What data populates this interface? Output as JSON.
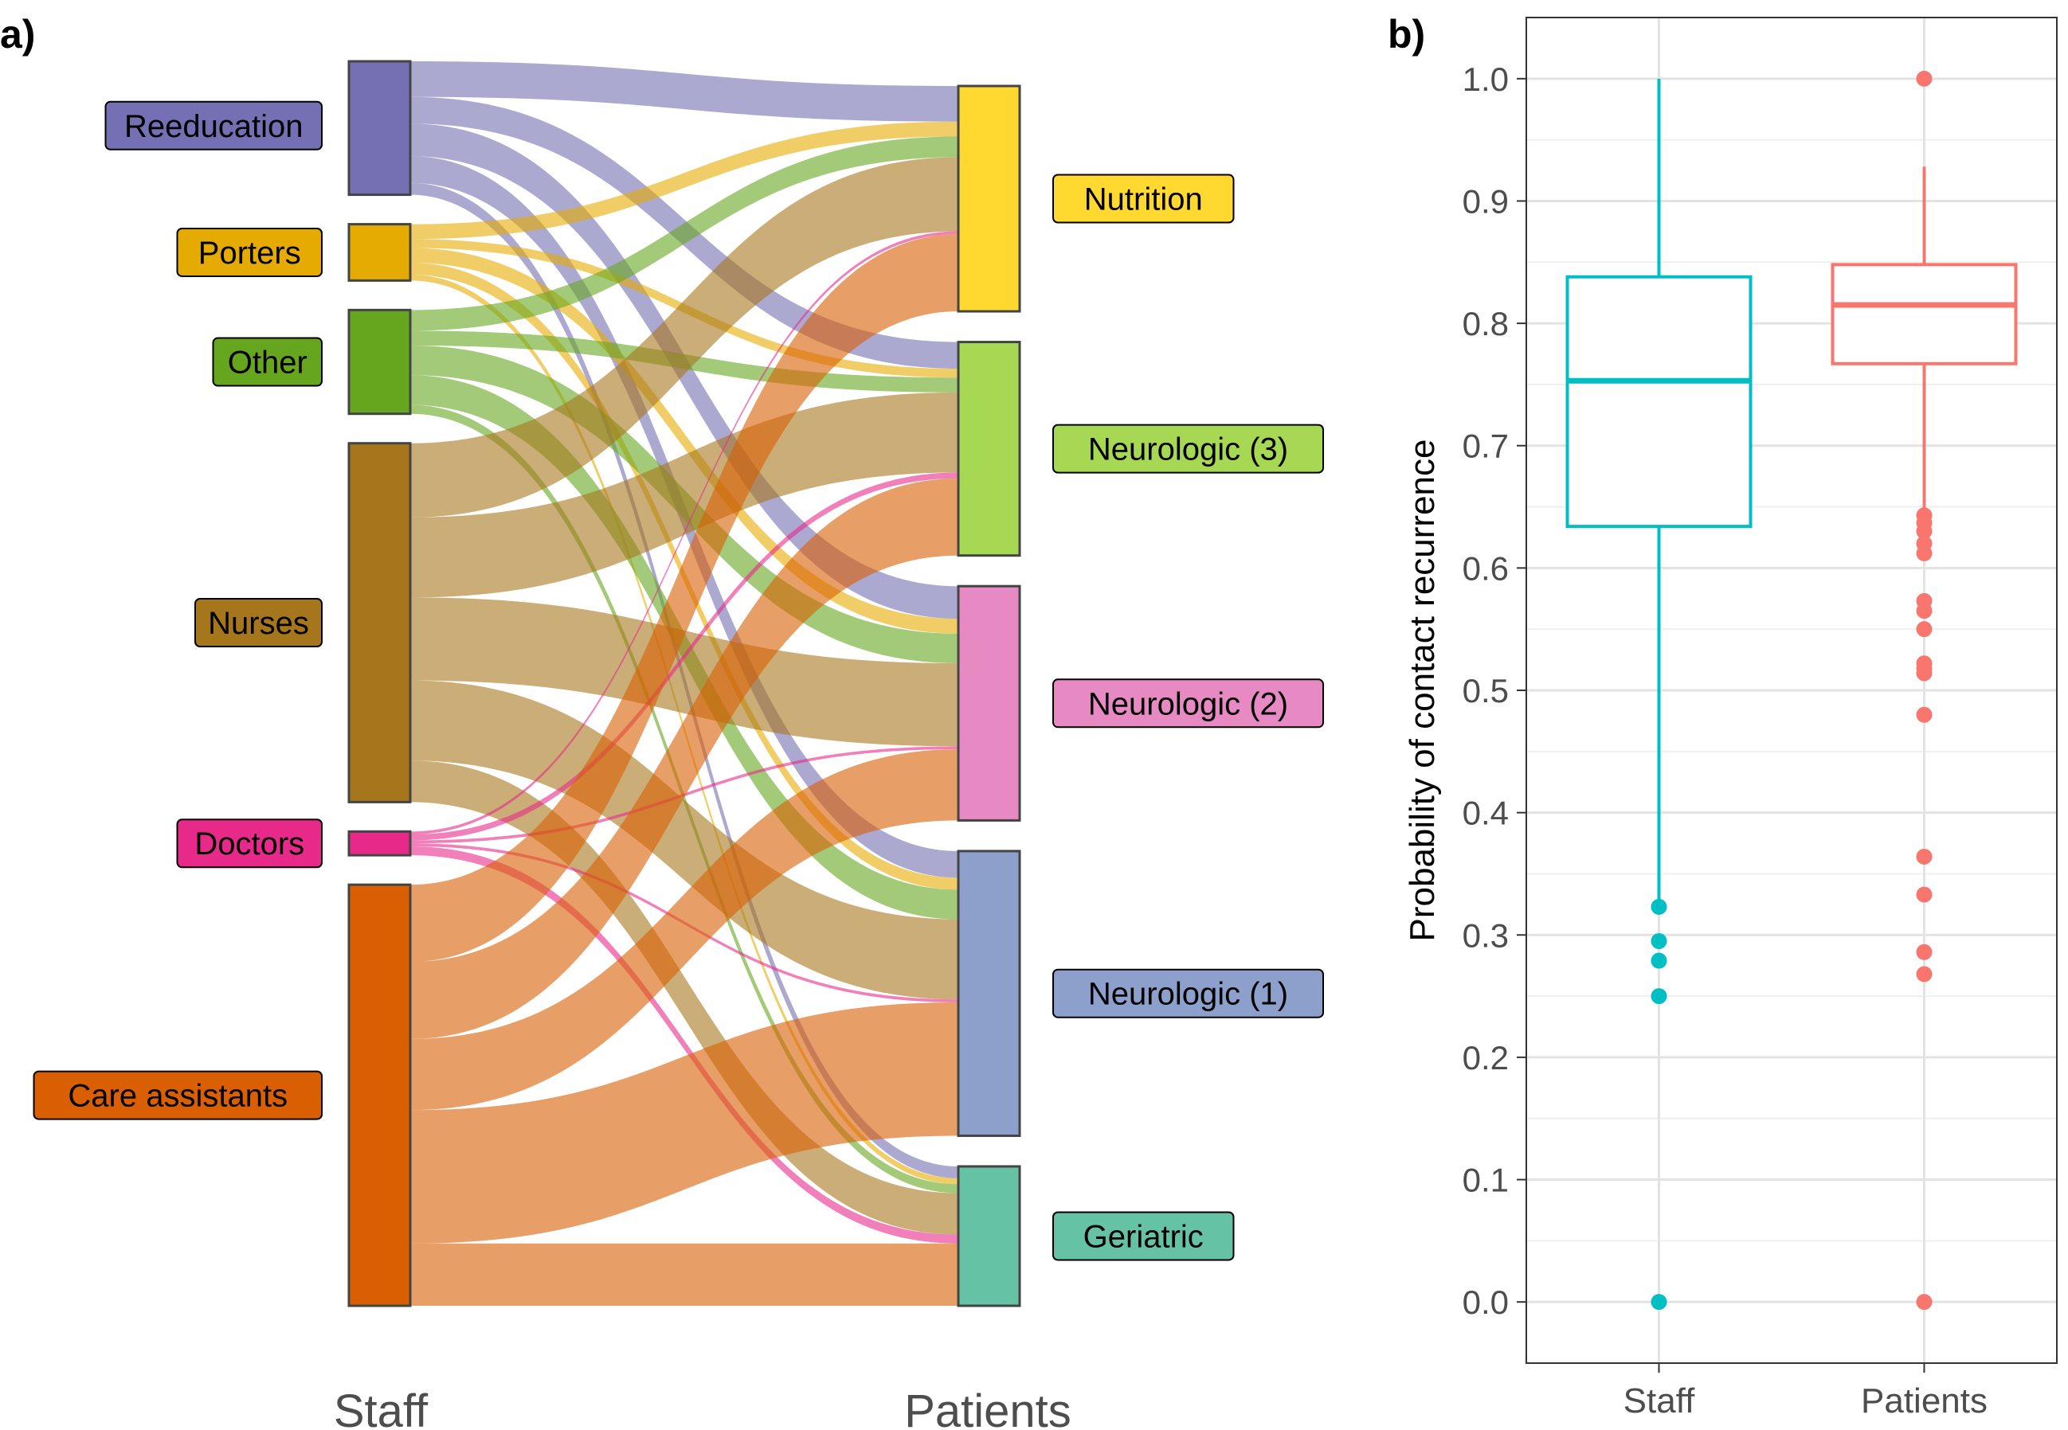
{
  "chart_data": [
    {
      "type": "sankey",
      "panel_label": "a)",
      "left_axis_label": "Staff",
      "right_axis_label": "Patients",
      "sources": [
        {
          "name": "Reeducation",
          "color": "#7570b3"
        },
        {
          "name": "Porters",
          "color": "#e6ab02"
        },
        {
          "name": "Other",
          "color": "#66a61e"
        },
        {
          "name": "Nurses",
          "color": "#a6761d"
        },
        {
          "name": "Doctors",
          "color": "#e7298a"
        },
        {
          "name": "Care assistants",
          "color": "#d95f02"
        }
      ],
      "targets": [
        {
          "name": "Nutrition",
          "color": "#ffd92f"
        },
        {
          "name": "Neurologic (3)",
          "color": "#a6d854"
        },
        {
          "name": "Neurologic (2)",
          "color": "#e78ac3"
        },
        {
          "name": "Neurologic (1)",
          "color": "#8da0cb"
        },
        {
          "name": "Geriatric",
          "color": "#66c2a5"
        }
      ],
      "flows": [
        {
          "source": "Reeducation",
          "target": "Nutrition",
          "value": 12
        },
        {
          "source": "Reeducation",
          "target": "Neurologic (3)",
          "value": 9
        },
        {
          "source": "Reeducation",
          "target": "Neurologic (2)",
          "value": 11
        },
        {
          "source": "Reeducation",
          "target": "Neurologic (1)",
          "value": 9
        },
        {
          "source": "Reeducation",
          "target": "Geriatric",
          "value": 4
        },
        {
          "source": "Porters",
          "target": "Nutrition",
          "value": 5
        },
        {
          "source": "Porters",
          "target": "Neurologic (3)",
          "value": 3
        },
        {
          "source": "Porters",
          "target": "Neurologic (2)",
          "value": 5
        },
        {
          "source": "Porters",
          "target": "Neurologic (1)",
          "value": 4
        },
        {
          "source": "Porters",
          "target": "Geriatric",
          "value": 2
        },
        {
          "source": "Other",
          "target": "Nutrition",
          "value": 7
        },
        {
          "source": "Other",
          "target": "Neurologic (3)",
          "value": 5
        },
        {
          "source": "Other",
          "target": "Neurologic (2)",
          "value": 10
        },
        {
          "source": "Other",
          "target": "Neurologic (1)",
          "value": 10
        },
        {
          "source": "Other",
          "target": "Geriatric",
          "value": 3
        },
        {
          "source": "Nurses",
          "target": "Nutrition",
          "value": 25
        },
        {
          "source": "Nurses",
          "target": "Neurologic (3)",
          "value": 27
        },
        {
          "source": "Nurses",
          "target": "Neurologic (2)",
          "value": 28
        },
        {
          "source": "Nurses",
          "target": "Neurologic (1)",
          "value": 27
        },
        {
          "source": "Nurses",
          "target": "Geriatric",
          "value": 14
        },
        {
          "source": "Doctors",
          "target": "Nutrition",
          "value": 1
        },
        {
          "source": "Doctors",
          "target": "Neurologic (3)",
          "value": 2
        },
        {
          "source": "Doctors",
          "target": "Neurologic (2)",
          "value": 1
        },
        {
          "source": "Doctors",
          "target": "Neurologic (1)",
          "value": 1
        },
        {
          "source": "Doctors",
          "target": "Geriatric",
          "value": 3
        },
        {
          "source": "Care assistants",
          "target": "Nutrition",
          "value": 26
        },
        {
          "source": "Care assistants",
          "target": "Neurologic (3)",
          "value": 26
        },
        {
          "source": "Care assistants",
          "target": "Neurologic (2)",
          "value": 24
        },
        {
          "source": "Care assistants",
          "target": "Neurologic (1)",
          "value": 45
        },
        {
          "source": "Care assistants",
          "target": "Geriatric",
          "value": 21
        }
      ]
    },
    {
      "type": "box",
      "panel_label": "b)",
      "ylabel": "Probability of contact recurrence",
      "ylim": [
        -0.05,
        1.05
      ],
      "yticks": [
        0.0,
        0.1,
        0.2,
        0.3,
        0.4,
        0.5,
        0.6,
        0.7,
        0.8,
        0.9,
        1.0
      ],
      "ytick_labels": [
        "0.0",
        "0.1",
        "0.2",
        "0.3",
        "0.4",
        "0.5",
        "0.6",
        "0.7",
        "0.8",
        "0.9",
        "1.0"
      ],
      "grid": true,
      "categories": [
        "Staff",
        "Patients"
      ],
      "boxes": [
        {
          "category": "Staff",
          "color": "#00bfc4",
          "min": 0.327,
          "q1": 0.634,
          "median": 0.753,
          "q3": 0.838,
          "max": 1.0,
          "outliers": [
            0.323,
            0.295,
            0.279,
            0.25,
            0.0
          ]
        },
        {
          "category": "Patients",
          "color": "#f8766d",
          "min": 0.646,
          "q1": 0.767,
          "median": 0.815,
          "q3": 0.848,
          "max": 0.928,
          "outliers": [
            1.0,
            0.643,
            0.637,
            0.63,
            0.62,
            0.612,
            0.573,
            0.565,
            0.55,
            0.522,
            0.518,
            0.514,
            0.48,
            0.364,
            0.333,
            0.286,
            0.268,
            0.0
          ]
        }
      ]
    }
  ]
}
